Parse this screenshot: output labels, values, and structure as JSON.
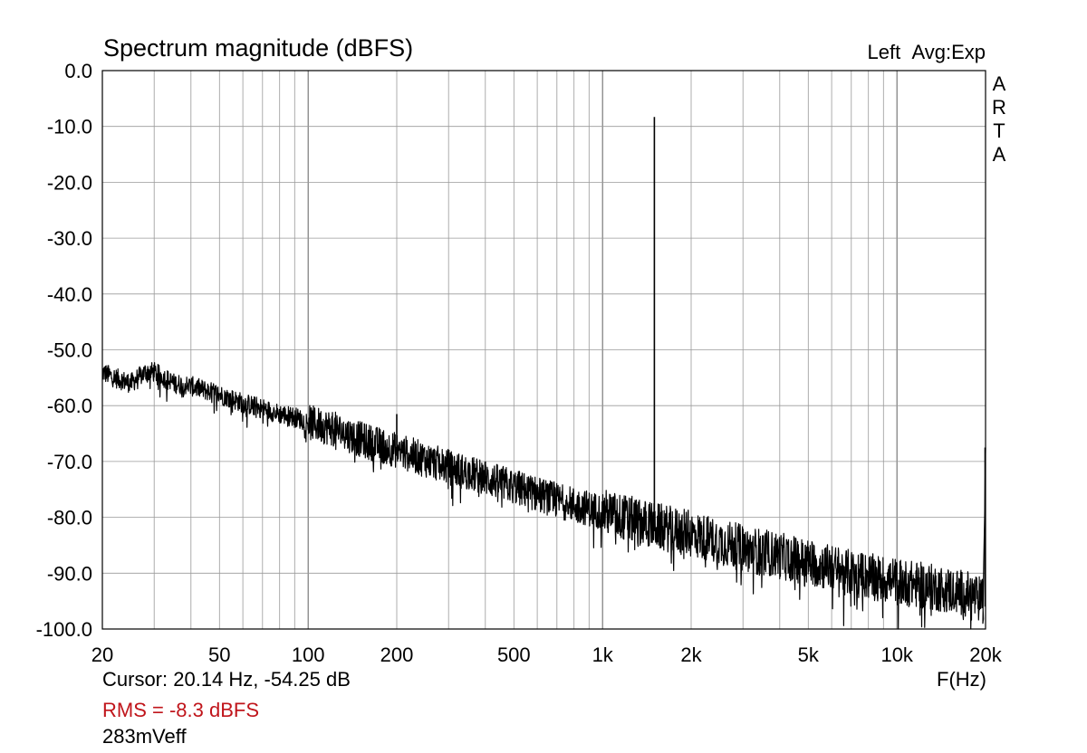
{
  "chart_data": {
    "type": "line",
    "title": "Spectrum magnitude (dBFS)",
    "channel": "Left",
    "averaging": "Avg:Exp",
    "brand": [
      "A",
      "R",
      "T",
      "A"
    ],
    "xlabel": "F(Hz)",
    "x_scale": "log",
    "xlim": [
      20,
      20000
    ],
    "ylim": [
      -100,
      0
    ],
    "y_ticks": [
      "0.0",
      "-10.0",
      "-20.0",
      "-30.0",
      "-40.0",
      "-50.0",
      "-60.0",
      "-70.0",
      "-80.0",
      "-90.0",
      "-100.0"
    ],
    "x_ticks": [
      {
        "value": 20,
        "label": "20"
      },
      {
        "value": 50,
        "label": "50"
      },
      {
        "value": 100,
        "label": "100"
      },
      {
        "value": 200,
        "label": "200"
      },
      {
        "value": 500,
        "label": "500"
      },
      {
        "value": 1000,
        "label": "1k"
      },
      {
        "value": 2000,
        "label": "2k"
      },
      {
        "value": 5000,
        "label": "5k"
      },
      {
        "value": 10000,
        "label": "10k"
      },
      {
        "value": 20000,
        "label": "20k"
      }
    ],
    "grid": true,
    "line_color": "#000000",
    "noise_floor": [
      [
        20,
        -54
      ],
      [
        22,
        -55
      ],
      [
        25,
        -56
      ],
      [
        28,
        -54
      ],
      [
        30,
        -54
      ],
      [
        35,
        -56
      ],
      [
        40,
        -56.5
      ],
      [
        50,
        -58
      ],
      [
        60,
        -59.5
      ],
      [
        70,
        -60.5
      ],
      [
        80,
        -61.5
      ],
      [
        90,
        -62
      ],
      [
        100,
        -63
      ],
      [
        120,
        -64
      ],
      [
        150,
        -66
      ],
      [
        200,
        -68
      ],
      [
        300,
        -71
      ],
      [
        400,
        -73
      ],
      [
        500,
        -74.5
      ],
      [
        700,
        -77
      ],
      [
        1000,
        -79
      ],
      [
        1500,
        -81.5
      ],
      [
        2000,
        -83
      ],
      [
        3000,
        -85.5
      ],
      [
        5000,
        -88
      ],
      [
        7000,
        -90
      ],
      [
        10000,
        -91.5
      ],
      [
        15000,
        -93
      ],
      [
        18000,
        -94
      ],
      [
        19500,
        -95
      ]
    ],
    "peaks": [
      {
        "freq": 200,
        "level": -61.5
      },
      {
        "freq": 400,
        "level": -70
      },
      {
        "freq": 1500,
        "level": -8.3
      },
      {
        "freq": 8000,
        "level": -90
      },
      {
        "freq": 20000,
        "level": -67.5
      }
    ]
  },
  "readout": {
    "cursor": "Cursor: 20.14 Hz, -54.25 dB",
    "rms": "RMS =   -8.3 dBFS",
    "veff": "283mVeff"
  },
  "colors": {
    "rms_text": "#c0151b",
    "grid": "#9a9a9a",
    "trace": "#000000"
  }
}
